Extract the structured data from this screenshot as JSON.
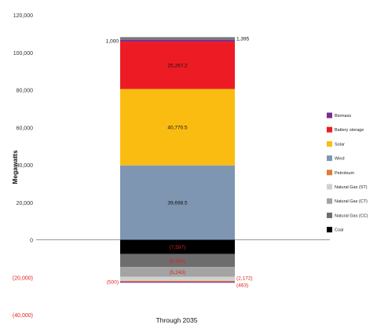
{
  "chart_data": {
    "type": "bar",
    "stacked": true,
    "categories": [
      "Through 2035"
    ],
    "ylabel": "Megawatts",
    "ylim": [
      -40000,
      120000
    ],
    "yticks": [
      120000,
      100000,
      80000,
      60000,
      40000,
      20000,
      0,
      -20000,
      -40000
    ],
    "ytick_labels": [
      "120,000",
      "100,000",
      "80,000",
      "60,000",
      "40,000",
      "20,000",
      "0",
      "(20,000)",
      "(40,000)"
    ],
    "negative_color": "#e02020",
    "legend_position": "right",
    "series": [
      {
        "name": "Wind",
        "values": [
          39698.5
        ],
        "color": "#7f96b2",
        "label": "39,698.5"
      },
      {
        "name": "Solar",
        "values": [
          40770.5
        ],
        "color": "#fbbc12",
        "label": "40,770.5"
      },
      {
        "name": "Battery storage",
        "values": [
          25267.2
        ],
        "color": "#ed1c24",
        "label": "25,267.2"
      },
      {
        "name": "Biomass",
        "values": [
          1000
        ],
        "color": "#7b2d8e",
        "label": "1,000"
      },
      {
        "name": "Natural Gas (CC)",
        "values": [
          1395
        ],
        "color": "#777777",
        "label": "1,395"
      },
      {
        "name": "Coal",
        "values": [
          -7597
        ],
        "color": "#000000",
        "label": "(7,597)"
      },
      {
        "name": "Natural Gas (CC)",
        "values": [
          -6950
        ],
        "color": "#6d6d6d",
        "label": "(6,950)"
      },
      {
        "name": "Natural Gas (CT)",
        "values": [
          -5243
        ],
        "color": "#a3a3a3",
        "label": "(5,243)"
      },
      {
        "name": "Natural Gas (ST)",
        "values": [
          -2172
        ],
        "color": "#d0d0d0",
        "label": "(2,172)"
      },
      {
        "name": "Petroleum",
        "values": [
          -500
        ],
        "color": "#e07a3a",
        "label": "(500)"
      },
      {
        "name": "Biomass",
        "values": [
          -463
        ],
        "color": "#7b2d8e",
        "label": "(463)"
      }
    ],
    "legend": [
      {
        "name": "Biomass",
        "color": "#7b2d8e"
      },
      {
        "name": "Battery storage",
        "color": "#ed1c24"
      },
      {
        "name": "Solar",
        "color": "#fbbc12"
      },
      {
        "name": "Wind",
        "color": "#7f96b2"
      },
      {
        "name": "Petroleum",
        "color": "#e07a3a"
      },
      {
        "name": "Natural Gas (ST)",
        "color": "#d0d0d0"
      },
      {
        "name": "Natural Gas (CT)",
        "color": "#a3a3a3"
      },
      {
        "name": "Natural Gas (CC)",
        "color": "#6d6d6d"
      },
      {
        "name": "Coal",
        "color": "#000000"
      }
    ]
  }
}
